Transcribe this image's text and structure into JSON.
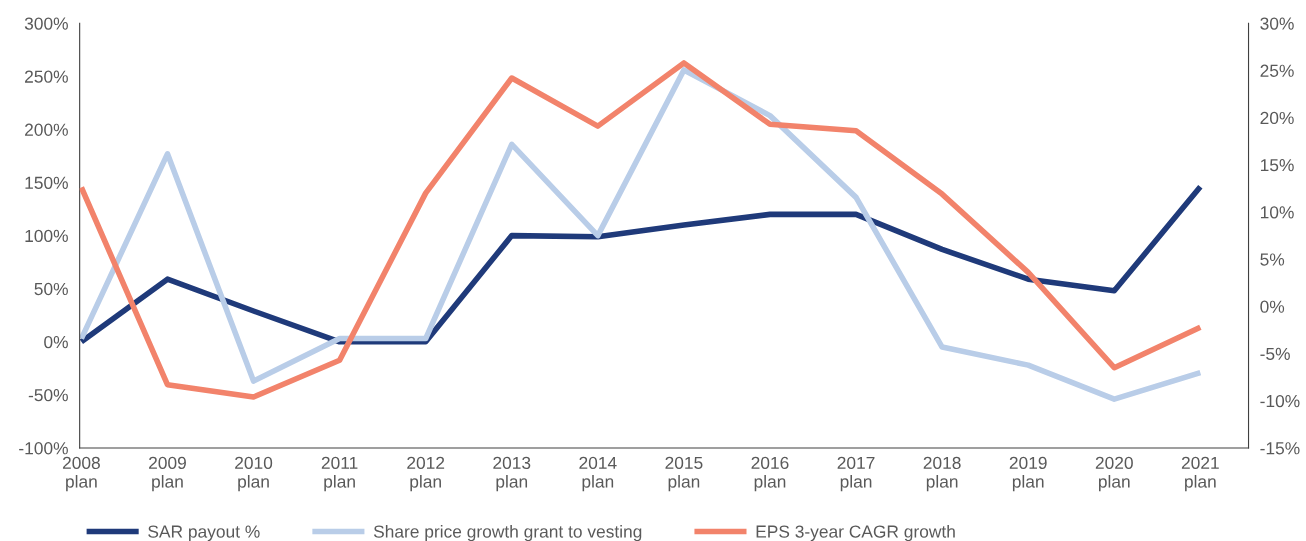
{
  "chart_data": {
    "type": "line",
    "categories": [
      "2008\nplan",
      "2009\nplan",
      "2010\nplan",
      "2011\nplan",
      "2012\nplan",
      "2013\nplan",
      "2014\nplan",
      "2015\nplan",
      "2016\nplan",
      "2017\nplan",
      "2018\nplan",
      "2019\nplan",
      "2020\nplan",
      "2021\nplan"
    ],
    "series": [
      {
        "name": "SAR payout %",
        "color": "#1f3a7a",
        "values": [
          0,
          59,
          29,
          0,
          0,
          100,
          99,
          110,
          120,
          120,
          87,
          59,
          48,
          146
        ]
      },
      {
        "name": "Share price growth grant to vesting",
        "color": "#b9cde8",
        "values": [
          3,
          177,
          -37,
          3,
          3,
          186,
          100,
          256,
          213,
          136,
          -5,
          -22,
          -54,
          -29
        ]
      },
      {
        "name": "EPS 3-year CAGR growth",
        "color": "#f2836b",
        "axis": "y2",
        "values": [
          12.6,
          -8.3,
          -9.6,
          -5.7,
          12.0,
          24.2,
          19.1,
          25.8,
          19.3,
          18.6,
          11.9,
          3.6,
          -6.5,
          -2.2
        ]
      }
    ],
    "ylim": [
      -100,
      300
    ],
    "yticks": [
      {
        "value": -100,
        "label": "-100%"
      },
      {
        "value": -50,
        "label": "-50%"
      },
      {
        "value": 0,
        "label": "0%"
      },
      {
        "value": 50,
        "label": "50%"
      },
      {
        "value": 100,
        "label": "100%"
      },
      {
        "value": 150,
        "label": "150%"
      },
      {
        "value": 200,
        "label": "200%"
      },
      {
        "value": 250,
        "label": "250%"
      },
      {
        "value": 300,
        "label": "300%"
      }
    ],
    "y2lim": [
      -15,
      30
    ],
    "y2ticks": [
      {
        "value": -15,
        "label": "-15%"
      },
      {
        "value": -10,
        "label": "-10%"
      },
      {
        "value": -5,
        "label": "-5%"
      },
      {
        "value": 0,
        "label": "0%"
      },
      {
        "value": 5,
        "label": "5%"
      },
      {
        "value": 10,
        "label": "10%"
      },
      {
        "value": 15,
        "label": "15%"
      },
      {
        "value": 20,
        "label": "20%"
      },
      {
        "value": 25,
        "label": "25%"
      },
      {
        "value": 30,
        "label": "30%"
      }
    ],
    "grid": false,
    "legend": "bottom",
    "marker": "none",
    "line_style": "solid"
  }
}
